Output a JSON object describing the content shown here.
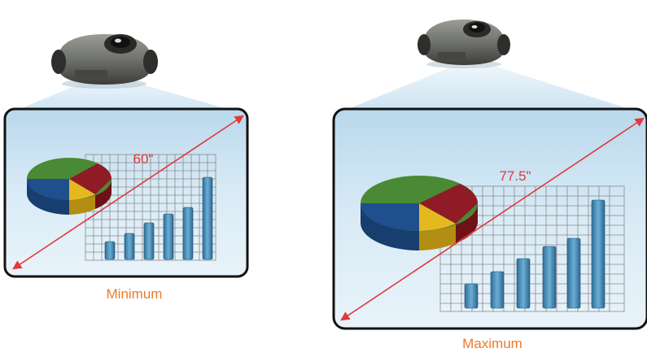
{
  "panels": {
    "minimum": {
      "label": "Minimum",
      "diagonal": "60\""
    },
    "maximum": {
      "label": "Maximum",
      "diagonal": "77.5\""
    }
  },
  "colors": {
    "label": "#ec7a2c",
    "diagonal_arrow": "#e03a3a",
    "screen_fill": "#d2e6f3",
    "screen_border": "#111111",
    "pie_green": "#4b8a34",
    "pie_red": "#8e1b26",
    "pie_yellow": "#e6b820",
    "pie_blue": "#1f4f8c",
    "bar_blue": "#4d8fb8",
    "grid": "#8a8a8a"
  },
  "icons": [
    "projector-icon",
    "pie-chart-icon",
    "bar-chart-icon",
    "diagonal-arrow-icon"
  ]
}
